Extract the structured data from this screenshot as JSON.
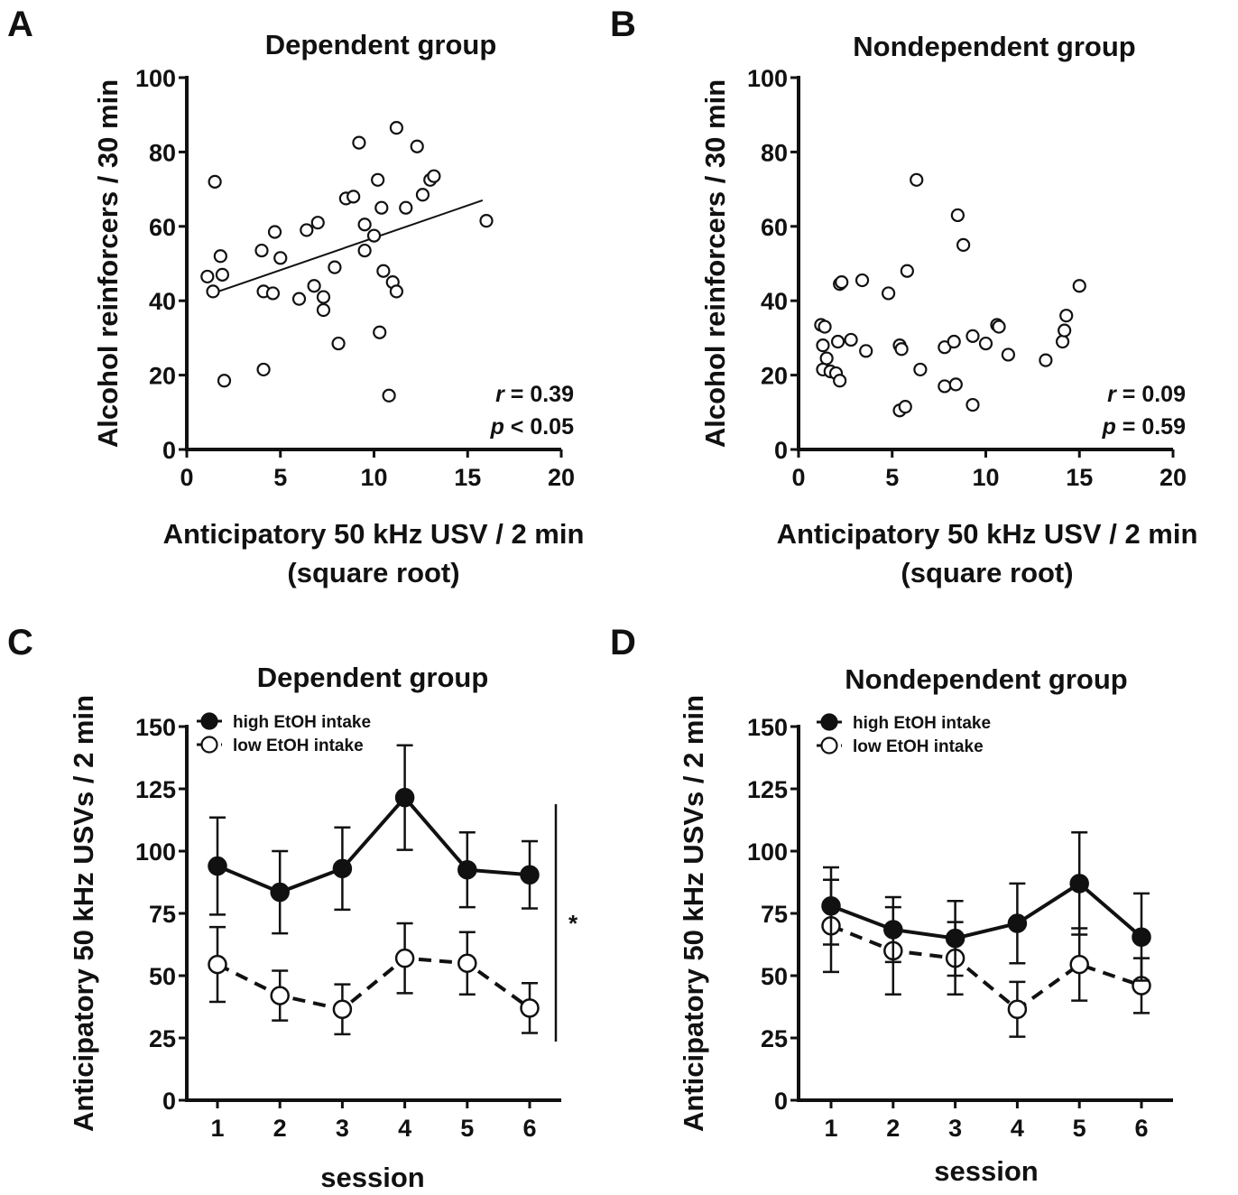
{
  "chart_data": [
    {
      "panel": "A",
      "type": "scatter",
      "title": "Dependent group",
      "xlabel": [
        "Anticipatory 50 kHz USV / 2 min",
        "(square root)"
      ],
      "ylabel": "Alcohol reinforcers / 30 min",
      "xlim": [
        0,
        20
      ],
      "ylim": [
        0,
        100
      ],
      "xticks": [
        0,
        5,
        10,
        15,
        20
      ],
      "yticks": [
        0,
        20,
        40,
        60,
        80,
        100
      ],
      "points": [
        [
          1.5,
          72
        ],
        [
          1.1,
          46.5
        ],
        [
          1.4,
          42.5
        ],
        [
          1.8,
          52
        ],
        [
          1.9,
          47
        ],
        [
          2.0,
          18.5
        ],
        [
          4.0,
          53.5
        ],
        [
          4.1,
          42.5
        ],
        [
          4.1,
          21.5
        ],
        [
          4.6,
          42
        ],
        [
          4.7,
          58.5
        ],
        [
          5.0,
          51.5
        ],
        [
          6.0,
          40.5
        ],
        [
          6.4,
          59
        ],
        [
          6.8,
          44
        ],
        [
          7.0,
          61
        ],
        [
          7.3,
          41
        ],
        [
          7.3,
          37.5
        ],
        [
          7.9,
          49
        ],
        [
          8.1,
          28.5
        ],
        [
          8.5,
          67.5
        ],
        [
          8.9,
          68
        ],
        [
          9.2,
          82.5
        ],
        [
          9.5,
          60.5
        ],
        [
          9.5,
          53.5
        ],
        [
          10.0,
          57.5
        ],
        [
          10.2,
          72.5
        ],
        [
          10.3,
          31.5
        ],
        [
          10.4,
          65
        ],
        [
          10.5,
          48
        ],
        [
          10.8,
          14.5
        ],
        [
          11.0,
          45
        ],
        [
          11.2,
          42.5
        ],
        [
          11.2,
          86.5
        ],
        [
          11.7,
          65
        ],
        [
          12.3,
          81.5
        ],
        [
          12.6,
          68.5
        ],
        [
          13.0,
          72.5
        ],
        [
          13.2,
          73.5
        ],
        [
          16.0,
          61.5
        ]
      ],
      "fit_line": {
        "x": [
          1.4,
          15.8
        ],
        "y": [
          42,
          67
        ]
      },
      "stats": {
        "r_label": "r",
        "r_text": " = 0.39",
        "p_label": "p",
        "p_text": " < 0.05"
      }
    },
    {
      "panel": "B",
      "type": "scatter",
      "title": "Nondependent group",
      "xlabel": [
        "Anticipatory 50 kHz USV / 2 min",
        "(square root)"
      ],
      "ylabel": "Alcohol reinforcers / 30 min",
      "xlim": [
        0,
        20
      ],
      "ylim": [
        0,
        100
      ],
      "xticks": [
        0,
        5,
        10,
        15,
        20
      ],
      "yticks": [
        0,
        20,
        40,
        60,
        80,
        100
      ],
      "points": [
        [
          1.2,
          33.5
        ],
        [
          1.4,
          33
        ],
        [
          1.3,
          28
        ],
        [
          1.5,
          24.5
        ],
        [
          1.3,
          21.5
        ],
        [
          1.7,
          21
        ],
        [
          2.0,
          20.5
        ],
        [
          2.2,
          18.5
        ],
        [
          2.1,
          29
        ],
        [
          2.2,
          44.5
        ],
        [
          2.3,
          45
        ],
        [
          2.8,
          29.5
        ],
        [
          3.4,
          45.5
        ],
        [
          3.6,
          26.5
        ],
        [
          4.8,
          42
        ],
        [
          5.4,
          28
        ],
        [
          5.5,
          27
        ],
        [
          5.4,
          10.5
        ],
        [
          5.7,
          11.5
        ],
        [
          5.8,
          48
        ],
        [
          6.3,
          72.5
        ],
        [
          6.5,
          21.5
        ],
        [
          7.8,
          27.5
        ],
        [
          7.8,
          17
        ],
        [
          8.3,
          29
        ],
        [
          8.4,
          17.5
        ],
        [
          8.5,
          63
        ],
        [
          8.8,
          55
        ],
        [
          9.3,
          30.5
        ],
        [
          9.3,
          12
        ],
        [
          10.0,
          28.5
        ],
        [
          10.6,
          33.5
        ],
        [
          10.7,
          33
        ],
        [
          11.2,
          25.5
        ],
        [
          13.2,
          24
        ],
        [
          14.1,
          29
        ],
        [
          14.2,
          32
        ],
        [
          14.3,
          36
        ],
        [
          15.0,
          44
        ]
      ],
      "stats": {
        "r_label": "r",
        "r_text": " = 0.09",
        "p_label": "p",
        "p_text": " = 0.59"
      }
    },
    {
      "panel": "C",
      "type": "line",
      "title": "Dependent group",
      "xlabel": "session",
      "ylabel": "Anticipatory 50 kHz USVs / 2 min",
      "categories": [
        "1",
        "2",
        "3",
        "4",
        "5",
        "6"
      ],
      "ylim": [
        0,
        150
      ],
      "yticks": [
        0,
        25,
        50,
        75,
        100,
        125,
        150
      ],
      "series": [
        {
          "name": "high EtOH intake",
          "values": [
            94,
            83.5,
            93,
            121.5,
            92.5,
            90.5
          ],
          "err": [
            19.5,
            16.5,
            16.5,
            21,
            15,
            13.5
          ],
          "marker": "filled",
          "dash": "solid"
        },
        {
          "name": "low EtOH intake",
          "values": [
            54.5,
            42,
            36.5,
            57,
            55,
            37
          ],
          "err": [
            15,
            10,
            10,
            14,
            12.5,
            10
          ],
          "marker": "open",
          "dash": "dashed"
        }
      ],
      "significance": "*"
    },
    {
      "panel": "D",
      "type": "line",
      "title": "Nondependent group",
      "xlabel": "session",
      "ylabel": "Anticipatory 50 kHz USVs / 2 min",
      "categories": [
        "1",
        "2",
        "3",
        "4",
        "5",
        "6"
      ],
      "ylim": [
        0,
        150
      ],
      "yticks": [
        0,
        25,
        50,
        75,
        100,
        125,
        150
      ],
      "series": [
        {
          "name": "high EtOH intake",
          "values": [
            78,
            68.5,
            65,
            71,
            87,
            65.5
          ],
          "err": [
            15.5,
            13,
            15,
            16,
            20.5,
            17.5
          ],
          "marker": "filled",
          "dash": "solid"
        },
        {
          "name": "low EtOH intake",
          "values": [
            70,
            60,
            57,
            36.5,
            54.5,
            46
          ],
          "err": [
            18.5,
            17.5,
            14.5,
            11,
            14.5,
            11
          ],
          "marker": "open",
          "dash": "dashed"
        }
      ]
    }
  ]
}
